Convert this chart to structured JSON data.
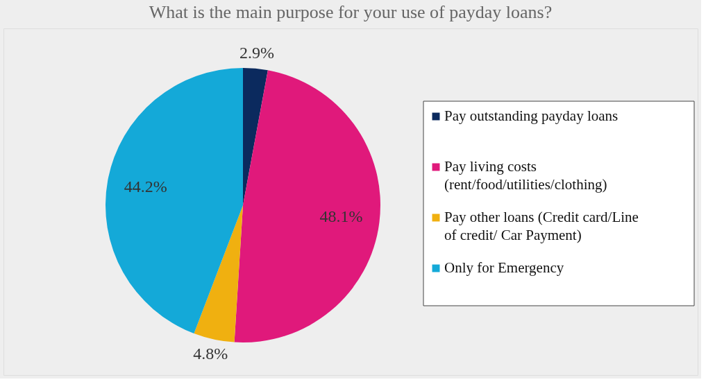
{
  "chart_data": {
    "type": "pie",
    "title": "What is the main purpose for your use of payday loans?",
    "categories": [
      "Pay outstanding payday loans",
      "Pay living costs (rent/food/utilities/clothing)",
      "Pay other loans (Credit card/Line of credit/ Car Payment)",
      "Only for Emergency"
    ],
    "values": [
      2.9,
      48.1,
      4.8,
      44.2
    ],
    "colors": [
      "#0b2a5e",
      "#e0197b",
      "#f0b010",
      "#14a9d8"
    ],
    "value_labels": [
      "2.9%",
      "48.1%",
      "4.8%",
      "44.2%"
    ],
    "legend": "right"
  }
}
